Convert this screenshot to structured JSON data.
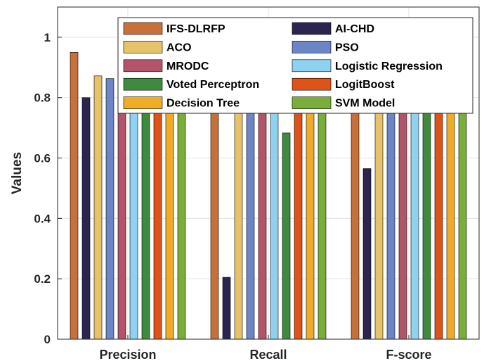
{
  "chart_data": {
    "type": "bar",
    "categories": [
      "Precision",
      "Recall",
      "F-score"
    ],
    "ylabel": "Values",
    "xlabel": "",
    "ylim": [
      0,
      1.1
    ],
    "yticks": [
      "0",
      "0.2",
      "0.4",
      "0.6",
      "0.8",
      "1"
    ],
    "grid": true,
    "legend_position": "top",
    "series": [
      {
        "name": "IFS-DLRFP",
        "color": "#c8703a",
        "values": [
          0.95,
          0.955,
          0.952
        ]
      },
      {
        "name": "AI-CHD",
        "color": "#2b2550",
        "values": [
          0.8,
          0.205,
          0.565
        ]
      },
      {
        "name": "ACO",
        "color": "#e6c26b",
        "values": [
          0.872,
          0.89,
          0.905
        ]
      },
      {
        "name": "PSO",
        "color": "#6b85c6",
        "values": [
          0.863,
          0.88,
          0.88
        ]
      },
      {
        "name": "MRODC",
        "color": "#b2556a",
        "values": [
          0.92,
          0.91,
          0.912
        ]
      },
      {
        "name": "Logistic Regression",
        "color": "#8fd2f0",
        "values": [
          0.88,
          0.795,
          0.833
        ]
      },
      {
        "name": "Voted Perceptron",
        "color": "#3e8a3e",
        "values": [
          0.925,
          0.683,
          0.787
        ]
      },
      {
        "name": "LogitBoost",
        "color": "#dd5318",
        "values": [
          0.845,
          0.778,
          0.81
        ]
      },
      {
        "name": "Decision Tree",
        "color": "#f0ac28",
        "values": [
          0.815,
          0.79,
          0.805
        ]
      },
      {
        "name": "SVM Model",
        "color": "#79ae3a",
        "values": [
          0.87,
          0.87,
          0.882
        ]
      }
    ]
  }
}
